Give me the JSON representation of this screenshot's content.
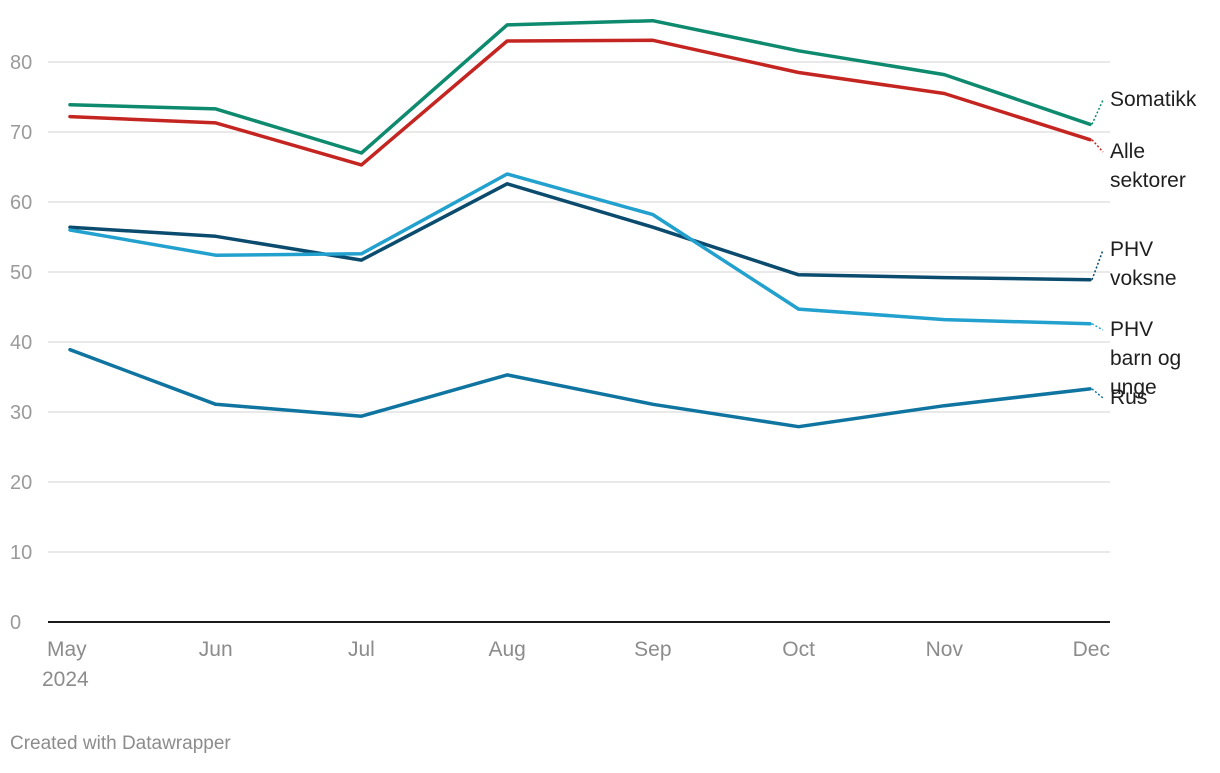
{
  "chart_data": {
    "type": "line",
    "categories": [
      "May",
      "Jun",
      "Jul",
      "Aug",
      "Sep",
      "Oct",
      "Nov",
      "Dec"
    ],
    "year_label": "2024",
    "ylim": [
      0,
      85
    ],
    "yticks": [
      0,
      10,
      20,
      30,
      40,
      50,
      60,
      70,
      80
    ],
    "grid": true,
    "legend": "inline-right",
    "series": [
      {
        "name": "Somatikk",
        "label_lines": [
          "Somatikk"
        ],
        "color": "#0e8a6e",
        "values": [
          73.9,
          73.3,
          67.0,
          85.3,
          85.9,
          81.6,
          78.2,
          71.1
        ]
      },
      {
        "name": "Alle sektorer",
        "label_lines": [
          "Alle",
          "sektorer"
        ],
        "color": "#c42521",
        "values": [
          72.2,
          71.3,
          65.3,
          83.0,
          83.1,
          78.5,
          75.5,
          68.9
        ]
      },
      {
        "name": "PHV voksne",
        "label_lines": [
          "PHV",
          "voksne"
        ],
        "color": "#0b4c6e",
        "values": [
          56.4,
          55.1,
          51.7,
          62.6,
          56.4,
          49.6,
          49.2,
          48.9
        ]
      },
      {
        "name": "PHV barn og unge",
        "label_lines": [
          "PHV",
          "barn og",
          "unge"
        ],
        "color": "#23a1ce",
        "values": [
          56.0,
          52.4,
          52.6,
          64.0,
          58.2,
          44.7,
          43.2,
          42.6
        ]
      },
      {
        "name": "Rus",
        "label_lines": [
          "Rus"
        ],
        "color": "#0f75a0",
        "values": [
          38.9,
          31.1,
          29.4,
          35.3,
          31.1,
          27.9,
          30.9,
          33.3
        ]
      }
    ]
  },
  "footer": {
    "credit": "Created with Datawrapper"
  }
}
